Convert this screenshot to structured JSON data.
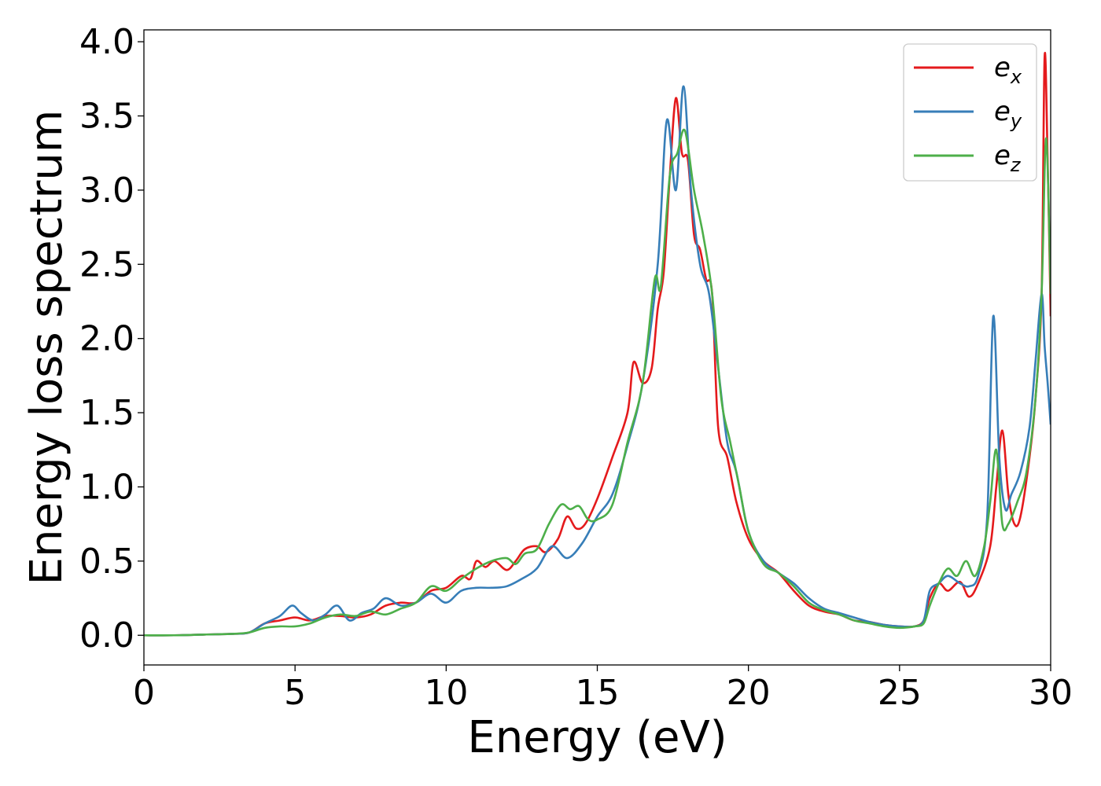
{
  "chart_data": {
    "type": "line",
    "title": "",
    "xlabel": "Energy (eV)",
    "ylabel": "Energy loss spectrum",
    "xlim": [
      0,
      30
    ],
    "ylim": [
      -0.2,
      4.08
    ],
    "xticks": [
      0,
      5,
      10,
      15,
      20,
      25,
      30
    ],
    "xtick_labels": [
      "0",
      "5",
      "10",
      "15",
      "20",
      "25",
      "30"
    ],
    "yticks": [
      0,
      0.5,
      1,
      1.5,
      2,
      2.5,
      3,
      3.5,
      4
    ],
    "ytick_labels": [
      "0.0",
      "0.5",
      "1.0",
      "1.5",
      "2.0",
      "2.5",
      "3.0",
      "3.5",
      "4.0"
    ],
    "grid": false,
    "legend": {
      "position": "top-right"
    },
    "series": [
      {
        "name": "e",
        "subscript": "x",
        "color": "#e41a1c",
        "x": [
          0,
          1,
          2,
          3,
          3.5,
          4,
          4.5,
          5,
          5.5,
          6,
          6.5,
          7,
          7.5,
          8,
          8.5,
          9,
          9.5,
          10,
          10.5,
          10.8,
          11,
          11.3,
          11.6,
          12,
          12.3,
          12.6,
          13,
          13.3,
          13.7,
          14,
          14.3,
          14.6,
          15,
          15.5,
          16,
          16.2,
          16.5,
          16.8,
          17,
          17.2,
          17.4,
          17.6,
          17.8,
          18,
          18.2,
          18.4,
          18.6,
          18.8,
          19,
          19.3,
          19.6,
          20,
          20.5,
          21,
          21.5,
          22,
          22.5,
          23,
          23.5,
          24,
          24.5,
          25,
          25.5,
          25.8,
          26,
          26.3,
          26.6,
          27,
          27.3,
          27.6,
          28,
          28.2,
          28.4,
          28.6,
          28.8,
          29,
          29.3,
          29.5,
          29.7,
          29.8,
          29.9,
          30
        ],
        "y": [
          0,
          0,
          0.005,
          0.01,
          0.02,
          0.08,
          0.1,
          0.12,
          0.1,
          0.13,
          0.13,
          0.12,
          0.14,
          0.2,
          0.22,
          0.22,
          0.3,
          0.32,
          0.4,
          0.38,
          0.5,
          0.46,
          0.5,
          0.44,
          0.5,
          0.58,
          0.6,
          0.56,
          0.65,
          0.8,
          0.72,
          0.75,
          0.92,
          1.2,
          1.5,
          1.84,
          1.7,
          1.8,
          2.2,
          2.45,
          3.1,
          3.62,
          3.25,
          3.2,
          2.7,
          2.6,
          2.4,
          2.3,
          1.4,
          1.2,
          0.9,
          0.65,
          0.5,
          0.42,
          0.3,
          0.2,
          0.16,
          0.14,
          0.1,
          0.09,
          0.07,
          0.06,
          0.06,
          0.1,
          0.25,
          0.35,
          0.3,
          0.36,
          0.26,
          0.35,
          0.6,
          1.0,
          1.38,
          0.95,
          0.75,
          0.8,
          1.2,
          1.6,
          2.3,
          3.9,
          3.2,
          2.15
        ]
      },
      {
        "name": "e",
        "subscript": "y",
        "color": "#377eb8",
        "x": [
          0,
          1,
          2,
          3,
          3.5,
          4,
          4.5,
          4.9,
          5.2,
          5.6,
          6,
          6.4,
          6.8,
          7.2,
          7.6,
          8,
          8.5,
          9,
          9.5,
          10,
          10.5,
          11,
          11.5,
          12,
          12.5,
          13,
          13.5,
          14,
          14.5,
          15,
          15.5,
          16,
          16.5,
          17,
          17.3,
          17.6,
          17.85,
          18.1,
          18.4,
          18.7,
          19,
          19.3,
          19.6,
          20,
          20.5,
          21,
          21.5,
          22,
          22.5,
          23,
          23.5,
          24,
          24.5,
          25,
          25.5,
          25.8,
          26,
          26.3,
          26.6,
          27,
          27.3,
          27.6,
          27.9,
          28.1,
          28.3,
          28.5,
          28.7,
          29,
          29.3,
          29.5,
          29.7,
          29.8,
          29.9,
          30
        ],
        "y": [
          0,
          0,
          0.005,
          0.01,
          0.02,
          0.08,
          0.13,
          0.2,
          0.15,
          0.1,
          0.14,
          0.2,
          0.1,
          0.15,
          0.18,
          0.25,
          0.2,
          0.22,
          0.28,
          0.22,
          0.3,
          0.32,
          0.32,
          0.33,
          0.38,
          0.45,
          0.6,
          0.52,
          0.62,
          0.8,
          0.95,
          1.28,
          1.7,
          2.5,
          3.47,
          3.0,
          3.7,
          3.0,
          2.5,
          2.3,
          1.8,
          1.3,
          1.1,
          0.7,
          0.5,
          0.42,
          0.35,
          0.25,
          0.18,
          0.15,
          0.12,
          0.09,
          0.07,
          0.06,
          0.06,
          0.1,
          0.3,
          0.35,
          0.4,
          0.35,
          0.33,
          0.4,
          0.8,
          2.15,
          1.2,
          0.85,
          0.95,
          1.1,
          1.4,
          1.85,
          2.3,
          1.95,
          1.7,
          1.42
        ]
      },
      {
        "name": "e",
        "subscript": "z",
        "color": "#4daf4a",
        "x": [
          0,
          1,
          2,
          3,
          3.5,
          4,
          4.5,
          5,
          5.5,
          6,
          6.5,
          7,
          7.5,
          8,
          8.5,
          9,
          9.5,
          10,
          10.5,
          11,
          11.5,
          12,
          12.3,
          12.6,
          13,
          13.4,
          13.8,
          14.1,
          14.4,
          14.7,
          15,
          15.5,
          16,
          16.5,
          16.9,
          17.1,
          17.4,
          17.65,
          17.9,
          18.2,
          18.5,
          18.8,
          19.1,
          19.4,
          19.7,
          20,
          20.5,
          21,
          21.5,
          22,
          22.5,
          23,
          23.5,
          24,
          24.5,
          25,
          25.5,
          25.8,
          26,
          26.3,
          26.6,
          26.9,
          27.2,
          27.5,
          27.8,
          28,
          28.2,
          28.4,
          28.6,
          28.9,
          29.2,
          29.5,
          29.7,
          29.85,
          30
        ],
        "y": [
          0,
          0,
          0.005,
          0.01,
          0.02,
          0.05,
          0.06,
          0.06,
          0.08,
          0.12,
          0.14,
          0.13,
          0.16,
          0.14,
          0.18,
          0.22,
          0.33,
          0.3,
          0.38,
          0.45,
          0.5,
          0.52,
          0.48,
          0.55,
          0.58,
          0.75,
          0.88,
          0.85,
          0.87,
          0.78,
          0.78,
          0.88,
          1.3,
          1.7,
          2.4,
          2.35,
          3.1,
          3.25,
          3.4,
          3.0,
          2.7,
          2.3,
          1.6,
          1.3,
          1.0,
          0.7,
          0.48,
          0.42,
          0.33,
          0.22,
          0.17,
          0.14,
          0.1,
          0.08,
          0.06,
          0.05,
          0.06,
          0.08,
          0.2,
          0.35,
          0.45,
          0.4,
          0.5,
          0.4,
          0.6,
          0.9,
          1.25,
          0.75,
          0.75,
          0.9,
          1.1,
          1.6,
          2.3,
          3.35,
          2.3
        ]
      }
    ]
  }
}
